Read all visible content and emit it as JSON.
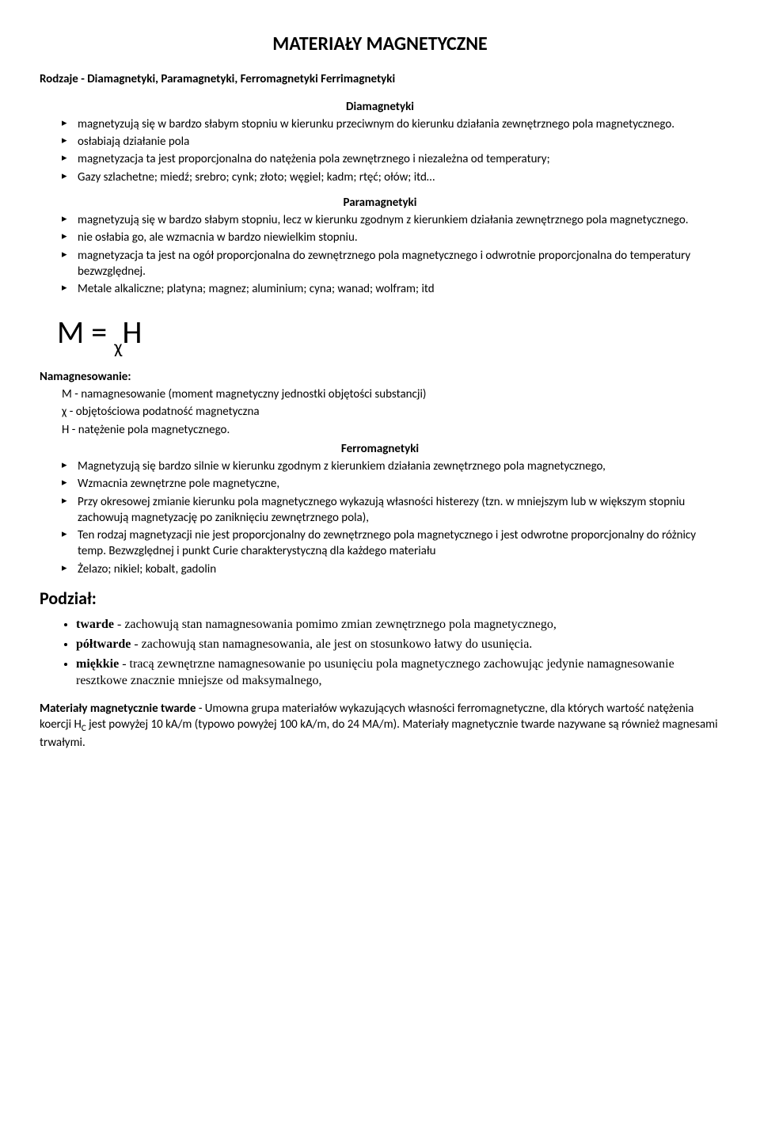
{
  "title": "MATERIAŁY MAGNETYCZNE",
  "subtitle": "Rodzaje - Diamagnetyki, Paramagnetyki, Ferromagnetyki Ferrimagnetyki",
  "sec_dia": {
    "head": "Diamagnetyki",
    "items": [
      "magnetyzują się w bardzo słabym stopniu w kierunku przeciwnym do kierunku działania zewnętrznego pola magnetycznego.",
      "osłabiają działanie pola",
      "magnetyzacja ta jest proporcjonalna do natężenia pola zewnętrznego i niezależna od temperatury;",
      "Gazy szlachetne; miedź; srebro; cynk; złoto; węgiel; kadm; rtęć; ołów; itd…"
    ]
  },
  "sec_para": {
    "head": "Paramagnetyki",
    "items": [
      "magnetyzują się w bardzo słabym stopniu, lecz w kierunku zgodnym z kierunkiem działania zewnętrznego pola magnetycznego.",
      "nie osłabia go, ale wzmacnia w bardzo niewielkim stopniu.",
      "magnetyzacja ta jest na ogół proporcjonalna do zewnętrznego pola magnetycznego i odwrotnie proporcjonalna do temperatury bezwzględnej.",
      "Metale alkaliczne; platyna; magnez; aluminium; cyna; wanad; wolfram; itd"
    ]
  },
  "formula": {
    "M": "M",
    "eq": " = ",
    "chi": "χ",
    "H": "H"
  },
  "namag": {
    "head": "Namagnesowanie:",
    "lines": [
      "M - namagnesowanie (moment magnetyczny jednostki objętości substancji)",
      "χ - objętościowa podatność magnetyczna",
      "H - natężenie pola magnetycznego."
    ]
  },
  "sec_ferro": {
    "head": "Ferromagnetyki",
    "items": [
      "Magnetyzują się bardzo silnie w kierunku zgodnym z kierunkiem działania zewnętrznego pola magnetycznego,",
      "Wzmacnia zewnętrzne pole magnetyczne,",
      "Przy okresowej zmianie kierunku pola magnetycznego wykazują własności histerezy (tzn. w mniejszym lub w większym stopniu zachowują magnetyzację po zaniknięciu zewnętrznego pola),",
      "Ten rodzaj magnetyzacji nie jest proporcjonalny do zewnętrznego pola magnetycznego i jest odwrotne proporcjonalny do różnicy temp. Bezwzględnej i punkt Curie charakterystyczną dla każdego materiału",
      "Żelazo; nikiel; kobalt, gadolin"
    ]
  },
  "podzial": {
    "head": "Podział:",
    "items": [
      {
        "b": "twarde",
        "mid": " - zachowują",
        "rest": " stan namagnesowania pomimo zmian zewnętrznego pola magnetycznego,"
      },
      {
        "b": "półtwarde",
        "mid": " - zachowują",
        "rest": " stan namagnesowania, ale jest on stosunkowo łatwy do usunięcia."
      },
      {
        "b": "miękkie",
        "mid": " - tracą",
        "rest": " zewnętrzne namagnesowanie po usunięciu pola magnetycznego zachowując jedynie namagnesowanie resztkowe znacznie mniejsze od maksymalnego,"
      }
    ]
  },
  "bottom": {
    "b": "Materiały magnetycznie twarde",
    "t1": " - Umowna grupa materiałów wykazujących własności ferromagnetyczne, dla których wartość natężenia koercji H",
    "sub": "C",
    "t2": " jest powyżej 10 kA/m (typowo powyżej 100 kA/m, do 24 MA/m). Materiały magnetycznie twarde nazywane są również magnesami trwałymi."
  }
}
